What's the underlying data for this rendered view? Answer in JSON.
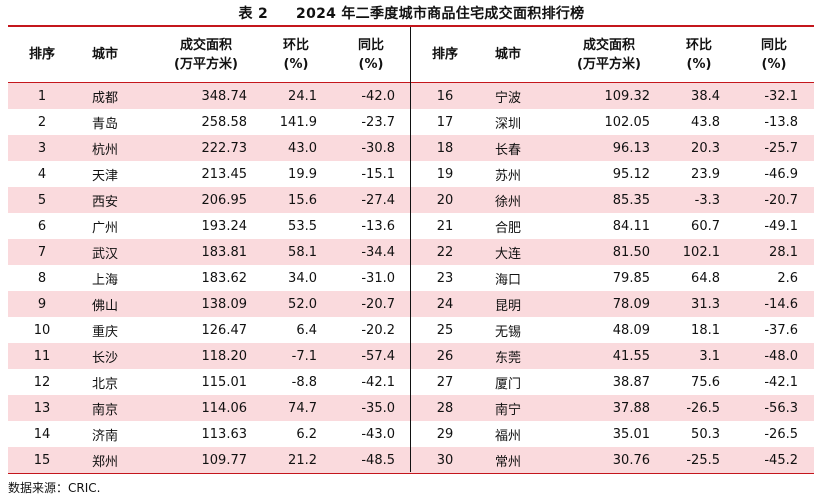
{
  "title": {
    "label": "表 2",
    "text": "2024 年二季度城市商品住宅成交面积排行榜"
  },
  "headers": {
    "rank": "排序",
    "city": "城市",
    "area_line1": "成交面积",
    "area_line2": "(万平方米)",
    "qoq_line1": "环比",
    "qoq_line2": "(%)",
    "yoy_line1": "同比",
    "yoy_line2": "(%)"
  },
  "rows_left": [
    {
      "rank": "1",
      "city": "成都",
      "area": "348.74",
      "qoq": "24.1",
      "yoy": "-42.0"
    },
    {
      "rank": "2",
      "city": "青岛",
      "area": "258.58",
      "qoq": "141.9",
      "yoy": "-23.7"
    },
    {
      "rank": "3",
      "city": "杭州",
      "area": "222.73",
      "qoq": "43.0",
      "yoy": "-30.8"
    },
    {
      "rank": "4",
      "city": "天津",
      "area": "213.45",
      "qoq": "19.9",
      "yoy": "-15.1"
    },
    {
      "rank": "5",
      "city": "西安",
      "area": "206.95",
      "qoq": "15.6",
      "yoy": "-27.4"
    },
    {
      "rank": "6",
      "city": "广州",
      "area": "193.24",
      "qoq": "53.5",
      "yoy": "-13.6"
    },
    {
      "rank": "7",
      "city": "武汉",
      "area": "183.81",
      "qoq": "58.1",
      "yoy": "-34.4"
    },
    {
      "rank": "8",
      "city": "上海",
      "area": "183.62",
      "qoq": "34.0",
      "yoy": "-31.0"
    },
    {
      "rank": "9",
      "city": "佛山",
      "area": "138.09",
      "qoq": "52.0",
      "yoy": "-20.7"
    },
    {
      "rank": "10",
      "city": "重庆",
      "area": "126.47",
      "qoq": "6.4",
      "yoy": "-20.2"
    },
    {
      "rank": "11",
      "city": "长沙",
      "area": "118.20",
      "qoq": "-7.1",
      "yoy": "-57.4"
    },
    {
      "rank": "12",
      "city": "北京",
      "area": "115.01",
      "qoq": "-8.8",
      "yoy": "-42.1"
    },
    {
      "rank": "13",
      "city": "南京",
      "area": "114.06",
      "qoq": "74.7",
      "yoy": "-35.0"
    },
    {
      "rank": "14",
      "city": "济南",
      "area": "113.63",
      "qoq": "6.2",
      "yoy": "-43.0"
    },
    {
      "rank": "15",
      "city": "郑州",
      "area": "109.77",
      "qoq": "21.2",
      "yoy": "-48.5"
    }
  ],
  "rows_right": [
    {
      "rank": "16",
      "city": "宁波",
      "area": "109.32",
      "qoq": "38.4",
      "yoy": "-32.1"
    },
    {
      "rank": "17",
      "city": "深圳",
      "area": "102.05",
      "qoq": "43.8",
      "yoy": "-13.8"
    },
    {
      "rank": "18",
      "city": "长春",
      "area": "96.13",
      "qoq": "20.3",
      "yoy": "-25.7"
    },
    {
      "rank": "19",
      "city": "苏州",
      "area": "95.12",
      "qoq": "23.9",
      "yoy": "-46.9"
    },
    {
      "rank": "20",
      "city": "徐州",
      "area": "85.35",
      "qoq": "-3.3",
      "yoy": "-20.7"
    },
    {
      "rank": "21",
      "city": "合肥",
      "area": "84.11",
      "qoq": "60.7",
      "yoy": "-49.1"
    },
    {
      "rank": "22",
      "city": "大连",
      "area": "81.50",
      "qoq": "102.1",
      "yoy": "28.1"
    },
    {
      "rank": "23",
      "city": "海口",
      "area": "79.85",
      "qoq": "64.8",
      "yoy": "2.6"
    },
    {
      "rank": "24",
      "city": "昆明",
      "area": "78.09",
      "qoq": "31.3",
      "yoy": "-14.6"
    },
    {
      "rank": "25",
      "city": "无锡",
      "area": "48.09",
      "qoq": "18.1",
      "yoy": "-37.6"
    },
    {
      "rank": "26",
      "city": "东莞",
      "area": "41.55",
      "qoq": "3.1",
      "yoy": "-48.0"
    },
    {
      "rank": "27",
      "city": "厦门",
      "area": "38.87",
      "qoq": "75.6",
      "yoy": "-42.1"
    },
    {
      "rank": "28",
      "city": "南宁",
      "area": "37.88",
      "qoq": "-26.5",
      "yoy": "-56.3"
    },
    {
      "rank": "29",
      "city": "福州",
      "area": "35.01",
      "qoq": "50.3",
      "yoy": "-26.5"
    },
    {
      "rank": "30",
      "city": "常州",
      "area": "30.76",
      "qoq": "-25.5",
      "yoy": "-45.2"
    }
  ],
  "source": "数据来源：CRIC.",
  "colors": {
    "rule": "#c4161c",
    "shade": "#fadadd"
  }
}
